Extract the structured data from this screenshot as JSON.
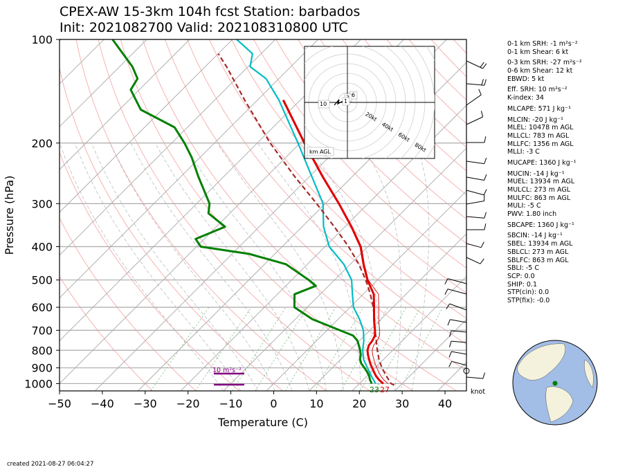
{
  "title_line1": "CPEX-AW 15-3km  104h fcst  Station: barbados",
  "title_line2": "Init: 2021082700  Valid: 202108310800 UTC",
  "footer": "created 2021-08-27 06:04:27",
  "colors": {
    "temperature": "#e00000",
    "dewpoint": "#008000",
    "wetbulb": "#00bcc4",
    "parcel": "#a52a2a",
    "srh": "#800080"
  },
  "chart_data": {
    "type": "skew-t",
    "xlabel": "Temperature (C)",
    "ylabel": "Pressure (hPa)",
    "xlim": [
      -50,
      45
    ],
    "ylim": [
      1050,
      100
    ],
    "x_ticks": [
      -50,
      -40,
      -30,
      -20,
      -10,
      0,
      10,
      20,
      30,
      40
    ],
    "y_ticks": [
      100,
      200,
      300,
      400,
      500,
      600,
      700,
      800,
      900,
      1000
    ],
    "temperature": [
      [
        1000,
        25.6
      ],
      [
        975,
        23.7
      ],
      [
        950,
        22.1
      ],
      [
        925,
        20.7
      ],
      [
        900,
        19.3
      ],
      [
        875,
        17.9
      ],
      [
        850,
        16.6
      ],
      [
        825,
        15.3
      ],
      [
        800,
        14.1
      ],
      [
        775,
        13.3
      ],
      [
        750,
        13.0
      ],
      [
        725,
        12.4
      ],
      [
        700,
        11.2
      ],
      [
        675,
        9.8
      ],
      [
        650,
        8.4
      ],
      [
        600,
        5.6
      ],
      [
        550,
        2.5
      ],
      [
        500,
        -2.3
      ],
      [
        450,
        -6.9
      ],
      [
        400,
        -11.7
      ],
      [
        350,
        -18.5
      ],
      [
        300,
        -26.8
      ],
      [
        250,
        -37.0
      ],
      [
        200,
        -49.0
      ],
      [
        150,
        -64.0
      ]
    ],
    "dewpoint": [
      [
        1000,
        22.9
      ],
      [
        975,
        21.6
      ],
      [
        950,
        20.5
      ],
      [
        925,
        19.1
      ],
      [
        900,
        17.5
      ],
      [
        875,
        15.8
      ],
      [
        850,
        14.5
      ],
      [
        825,
        13.6
      ],
      [
        800,
        12.4
      ],
      [
        775,
        11.0
      ],
      [
        750,
        9.5
      ],
      [
        725,
        7.3
      ],
      [
        700,
        3.0
      ],
      [
        650,
        -6.0
      ],
      [
        600,
        -13.0
      ],
      [
        550,
        -16.0
      ],
      [
        520,
        -13.0
      ],
      [
        500,
        -16.0
      ],
      [
        450,
        -25.0
      ],
      [
        420,
        -36.0
      ],
      [
        400,
        -49.0
      ],
      [
        380,
        -52.0
      ],
      [
        350,
        -48.0
      ],
      [
        320,
        -55.0
      ],
      [
        300,
        -57.0
      ],
      [
        250,
        -66.0
      ],
      [
        220,
        -72.0
      ],
      [
        200,
        -77.0
      ],
      [
        180,
        -83.0
      ],
      [
        160,
        -95.0
      ],
      [
        140,
        -102.0
      ],
      [
        130,
        -103.0
      ],
      [
        120,
        -107.0
      ],
      [
        100,
        -118.0
      ]
    ],
    "wetbulb": [
      [
        1000,
        23.8
      ],
      [
        950,
        21.0
      ],
      [
        900,
        18.2
      ],
      [
        850,
        15.3
      ],
      [
        800,
        13.0
      ],
      [
        750,
        11.0
      ],
      [
        700,
        8.5
      ],
      [
        650,
        5.0
      ],
      [
        600,
        0.8
      ],
      [
        550,
        -2.5
      ],
      [
        500,
        -6.0
      ],
      [
        450,
        -11.5
      ],
      [
        400,
        -19.0
      ],
      [
        350,
        -25.0
      ],
      [
        300,
        -30.5
      ],
      [
        250,
        -39.5
      ],
      [
        200,
        -50.5
      ],
      [
        150,
        -65.0
      ],
      [
        130,
        -73.0
      ],
      [
        120,
        -79.5
      ],
      [
        110,
        -82.0
      ],
      [
        100,
        -89.0
      ]
    ],
    "parcel": [
      [
        1010,
        28.5
      ],
      [
        1000,
        27.4
      ],
      [
        950,
        24.5
      ],
      [
        900,
        21.6
      ],
      [
        850,
        18.9
      ],
      [
        800,
        16.4
      ],
      [
        750,
        13.9
      ],
      [
        700,
        11.2
      ],
      [
        650,
        8.5
      ],
      [
        600,
        5.4
      ],
      [
        550,
        1.7
      ],
      [
        500,
        -2.7
      ],
      [
        450,
        -8.0
      ],
      [
        400,
        -14.5
      ],
      [
        350,
        -22.5
      ],
      [
        300,
        -32.0
      ],
      [
        250,
        -43.5
      ],
      [
        200,
        -57.0
      ],
      [
        150,
        -73.0
      ],
      [
        120,
        -85.0
      ],
      [
        110,
        -90.0
      ]
    ],
    "surface_labels": {
      "dewpoint": "23",
      "temperature": "27"
    },
    "srh_bar_label": "10 m²s⁻²",
    "hodograph": {
      "units": "km AGL",
      "rings": [
        "20kt",
        "40kt",
        "60kt",
        "80kt"
      ],
      "height_labels": [
        "10",
        "6",
        "3",
        "1"
      ]
    },
    "wind_units": "knot"
  },
  "indices": [
    "0-1 km SRH: -1 m²s⁻²",
    "0-1 km Shear: 6 kt",
    "",
    "0-3 km SRH: -27 m²s⁻²",
    "0-6 km Shear: 12 kt",
    "EBWD: 5 kt",
    "",
    "Eff. SRH: 10 m²s⁻²",
    "K-index: 34",
    "",
    "MLCAPE: 571 J kg⁻¹",
    "",
    "MLCIN: -20 J kg⁻¹",
    "MLEL: 10478 m AGL",
    "MLLCL: 783 m AGL",
    "MLLFC: 1356 m AGL",
    "MLLI: -3 C",
    "",
    "MUCAPE: 1360 J kg⁻¹",
    "",
    "MUCIN: -14 J kg⁻¹",
    "MUEL: 13934 m AGL",
    "MULCL: 273 m AGL",
    "MULFC: 863 m AGL",
    "MULI: -5 C",
    "PWV: 1.80 inch",
    "",
    "SBCAPE: 1360 J kg⁻¹",
    "",
    "SBCIN: -14 J kg⁻¹",
    "SBEL: 13934 m AGL",
    "SBLCL: 273 m AGL",
    "SBLFC: 863 m AGL",
    "SBLI: -5 C",
    "SCP: 0.0",
    "SHIP: 0.1",
    "STP(cin): 0.0",
    "STP(fix): -0.0"
  ]
}
